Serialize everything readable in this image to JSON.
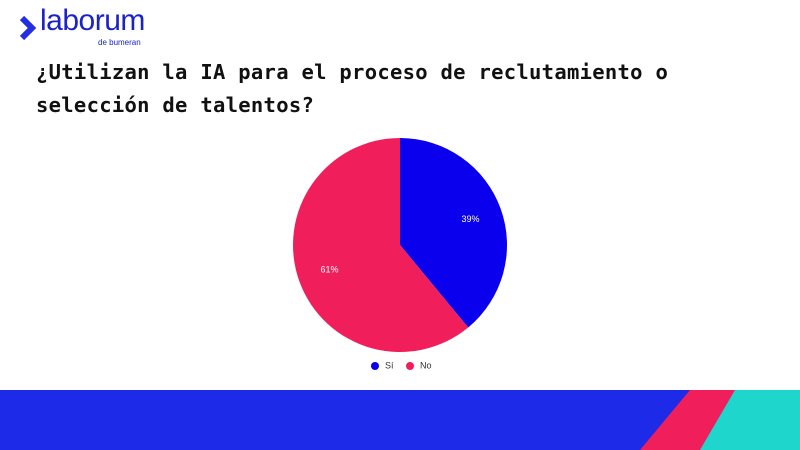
{
  "logo": {
    "name": "laborum",
    "tagline": "de bumeran"
  },
  "chart_data": {
    "type": "pie",
    "title": "¿Utilizan la IA para el proceso de reclutamiento o selección de talentos?",
    "categories": [
      "Sí",
      "No"
    ],
    "values": [
      39,
      61
    ],
    "value_labels": [
      "39%",
      "61%"
    ],
    "colors": [
      "#0b00ee",
      "#f01f5c"
    ]
  }
}
